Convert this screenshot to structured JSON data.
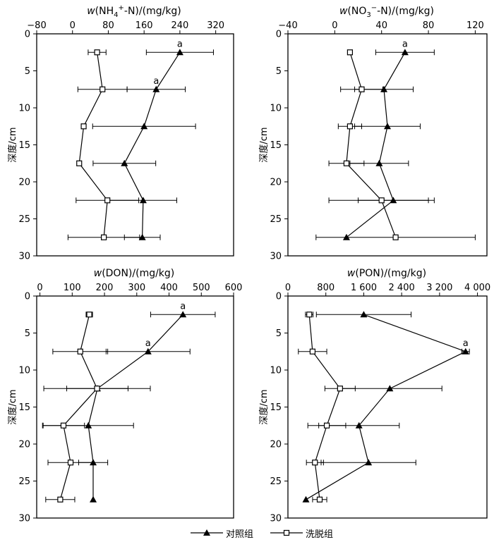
{
  "chart_data": [
    {
      "type": "line",
      "title": "w(NH4+-N)/(mg/kg)",
      "title_parts": {
        "pre": "w",
        "main": "(NH",
        "sub": "4",
        "sup": "+",
        "post": "-N)/(mg/kg)"
      },
      "ylabel": "深度/cm",
      "xlim": [
        -80,
        360
      ],
      "ylim": [
        0,
        30
      ],
      "xticks": [
        -80,
        0,
        80,
        160,
        240,
        320
      ],
      "xtick_labels": [
        "−80",
        "0",
        "80",
        "160",
        "240",
        "320"
      ],
      "yticks": [
        0,
        5,
        10,
        15,
        20,
        25,
        30
      ],
      "ytick_labels": [
        "0",
        "5",
        "10",
        "15",
        "20",
        "25",
        "30"
      ],
      "series": [
        {
          "name": "对照组",
          "marker": "triangle",
          "x": [
            240,
            187,
            160,
            116,
            158,
            156
          ],
          "y": [
            2.5,
            7.5,
            12.5,
            17.5,
            22.5,
            27.5
          ],
          "err": [
            75,
            65,
            115,
            70,
            75,
            40
          ],
          "labels": [
            "a",
            "a",
            "",
            "",
            "",
            ""
          ]
        },
        {
          "name": "洗脱组",
          "marker": "square",
          "x": [
            55,
            67,
            25,
            15,
            78,
            70
          ],
          "y": [
            2.5,
            7.5,
            12.5,
            17.5,
            22.5,
            27.5
          ],
          "err": [
            20,
            55,
            5,
            5,
            70,
            80
          ],
          "labels": [
            "",
            "",
            "",
            "",
            "",
            ""
          ]
        }
      ]
    },
    {
      "type": "line",
      "title": "w(NO3−-N)/(mg/kg)",
      "title_parts": {
        "pre": "w",
        "main": "(NO",
        "sub": "3",
        "sup": "−",
        "post": "-N)/(mg/kg)"
      },
      "ylabel": "深度/cm",
      "xlim": [
        -40,
        130
      ],
      "ylim": [
        0,
        30
      ],
      "xticks": [
        -40,
        0,
        40,
        80,
        120
      ],
      "xtick_labels": [
        "−40",
        "0",
        "40",
        "80",
        "120"
      ],
      "yticks": [
        0,
        5,
        10,
        15,
        20,
        25,
        30
      ],
      "ytick_labels": [
        "0",
        "5",
        "10",
        "15",
        "20",
        "25",
        "30"
      ],
      "series": [
        {
          "name": "对照组",
          "marker": "triangle",
          "x": [
            60,
            42,
            45,
            38,
            50,
            10
          ],
          "y": [
            2.5,
            7.5,
            12.5,
            17.5,
            22.5,
            27.5
          ],
          "err": [
            25,
            25,
            28,
            25,
            30,
            0
          ],
          "labels": [
            "a",
            "",
            "",
            "",
            "",
            ""
          ]
        },
        {
          "name": "洗脱组",
          "marker": "square",
          "x": [
            13,
            23,
            13,
            10,
            40,
            52
          ],
          "y": [
            2.5,
            7.5,
            12.5,
            17.5,
            22.5,
            27.5
          ],
          "err": [
            2,
            18,
            10,
            15,
            45,
            68
          ],
          "labels": [
            "",
            "",
            "",
            "",
            "",
            ""
          ]
        }
      ]
    },
    {
      "type": "line",
      "title": "w(DON)/(mg/kg)",
      "title_parts": {
        "pre": "w",
        "main": "(DON)/(mg/kg)",
        "sub": "",
        "sup": "",
        "post": ""
      },
      "ylabel": "深度/cm",
      "xlim": [
        -10,
        600
      ],
      "ylim": [
        0,
        30
      ],
      "xticks": [
        0,
        100,
        200,
        300,
        400,
        500,
        600
      ],
      "xtick_labels": [
        "0",
        "100",
        "200",
        "300",
        "400",
        "500",
        "600"
      ],
      "yticks": [
        0,
        5,
        10,
        15,
        20,
        25,
        30
      ],
      "ytick_labels": [
        "0",
        "5",
        "10",
        "15",
        "20",
        "25",
        "30"
      ],
      "series": [
        {
          "name": "对照组",
          "marker": "triangle",
          "x": [
            443,
            335,
            178,
            150,
            165,
            165
          ],
          "y": [
            2.5,
            7.5,
            12.5,
            17.5,
            22.5,
            27.5
          ],
          "err": [
            100,
            130,
            95,
            140,
            45,
            0
          ],
          "labels": [
            "a",
            "a",
            "",
            "",
            "",
            ""
          ]
        },
        {
          "name": "洗脱组",
          "marker": "square",
          "x": [
            153,
            125,
            177,
            73,
            95,
            63
          ],
          "y": [
            2.5,
            7.5,
            12.5,
            17.5,
            22.5,
            27.5
          ],
          "err": [
            10,
            85,
            165,
            65,
            70,
            45
          ],
          "labels": [
            "",
            "",
            "",
            "",
            "",
            ""
          ]
        }
      ]
    },
    {
      "type": "line",
      "title": "w(PON)/(mg/kg)",
      "title_parts": {
        "pre": "w",
        "main": "(PON)/(mg/kg)",
        "sub": "",
        "sup": "",
        "post": ""
      },
      "ylabel": "深度/cm",
      "xlim": [
        0,
        4200
      ],
      "ylim": [
        0,
        30
      ],
      "xticks": [
        0,
        800,
        1600,
        2400,
        3200,
        4000
      ],
      "xtick_labels": [
        "0",
        "800",
        "1 600",
        "2 400",
        "3 200",
        "4 000"
      ],
      "yticks": [
        0,
        5,
        10,
        15,
        20,
        25,
        30
      ],
      "ytick_labels": [
        "0",
        "5",
        "10",
        "15",
        "20",
        "25",
        "30"
      ],
      "series": [
        {
          "name": "对照组",
          "marker": "triangle",
          "x": [
            1600,
            3750,
            2150,
            1500,
            1700,
            380
          ],
          "y": [
            2.5,
            7.5,
            12.5,
            17.5,
            22.5,
            27.5
          ],
          "err": [
            1000,
            80,
            1100,
            850,
            1000,
            0
          ],
          "labels": [
            "",
            "a",
            "",
            "",
            "",
            ""
          ]
        },
        {
          "name": "洗脱组",
          "marker": "square",
          "x": [
            450,
            520,
            1100,
            820,
            570,
            670
          ],
          "y": [
            2.5,
            7.5,
            12.5,
            17.5,
            22.5,
            27.5
          ],
          "err": [
            80,
            300,
            320,
            400,
            180,
            150
          ],
          "labels": [
            "",
            "",
            "",
            "",
            "",
            ""
          ]
        }
      ]
    }
  ],
  "legend": {
    "control": "对照组",
    "eluted": "洗脱组"
  }
}
